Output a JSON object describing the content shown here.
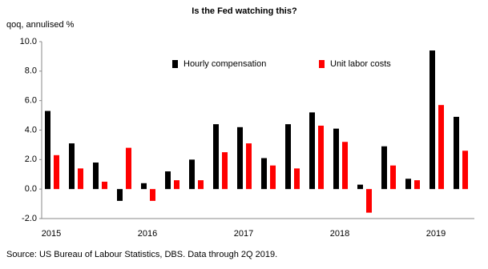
{
  "chart_data": {
    "type": "bar",
    "title": "Is the Fed watching this?",
    "y_label": "qoq, annulised %",
    "source": "Source: US Bureau of Labour Statistics, DBS. Data through 2Q 2019.",
    "categories": [
      "2015",
      null,
      null,
      null,
      "2016",
      null,
      null,
      null,
      "2017",
      null,
      null,
      null,
      "2018",
      null,
      null,
      null,
      "2019",
      null
    ],
    "series": [
      {
        "name": "Hourly compensation",
        "color": "#000000",
        "values": [
          5.3,
          3.1,
          1.8,
          -0.8,
          0.4,
          1.2,
          2.0,
          4.4,
          4.2,
          2.1,
          4.4,
          5.2,
          4.1,
          0.3,
          2.9,
          0.7,
          9.4,
          4.9
        ]
      },
      {
        "name": "Unit labor costs",
        "color": "#ff0000",
        "values": [
          2.3,
          1.4,
          0.5,
          2.8,
          -0.8,
          0.6,
          0.6,
          2.5,
          3.1,
          1.6,
          1.4,
          4.3,
          3.2,
          -1.6,
          1.6,
          0.6,
          5.7,
          2.6
        ]
      }
    ],
    "ylim": [
      -2,
      10
    ],
    "yticks": [
      {
        "value": -2,
        "label": "-2.0"
      },
      {
        "value": 0,
        "label": "0.0"
      },
      {
        "value": 2,
        "label": "2.0"
      },
      {
        "value": 4,
        "label": "4.0"
      },
      {
        "value": 6,
        "label": "6.0"
      },
      {
        "value": 8,
        "label": "8.0"
      },
      {
        "value": 10,
        "label": "10.0"
      }
    ],
    "grid": false,
    "legend": "top"
  }
}
